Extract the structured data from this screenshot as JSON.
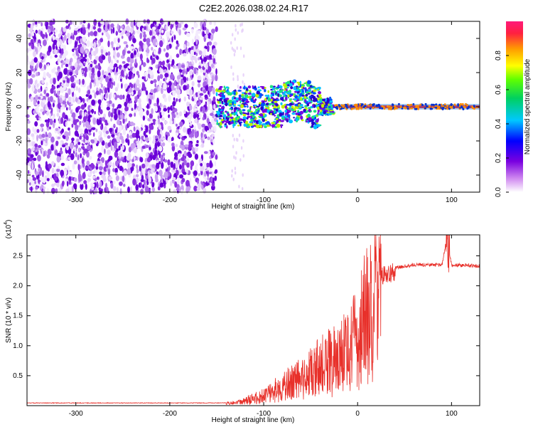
{
  "title": "C2E2.2026.038.02.24.R17",
  "chart_data": [
    {
      "type": "heatmap",
      "title": "C2E2.2026.038.02.24.R17",
      "xlabel": "Height of straight line (km)",
      "ylabel": "Frequency (Hz)",
      "xlim": [
        -352,
        130
      ],
      "ylim": [
        -50,
        50
      ],
      "xticks": [
        -300,
        -200,
        -100,
        0,
        100
      ],
      "yticks": [
        -40,
        -20,
        0,
        20,
        40
      ],
      "noise_region_end_km": -150,
      "signal_line_hz": 0,
      "colorbar": {
        "label": "Normalized spectral amplitude",
        "range": [
          0,
          1
        ],
        "ticks": [
          "0.0",
          "0.2",
          "0.4",
          "0.6",
          "0.8"
        ]
      }
    },
    {
      "type": "line",
      "xlabel": "Height of straight line (km)",
      "ylabel": "SNR (10 * v/v)",
      "y_multiplier": "(x10",
      "y_multiplier_exp": "4",
      "y_multiplier_close": ")",
      "xlim": [
        -352,
        130
      ],
      "ylim": [
        0,
        2.85
      ],
      "xticks": [
        -300,
        -200,
        -100,
        0,
        100
      ],
      "yticks": [
        "0.5",
        "1.0",
        "1.5",
        "2.0",
        "2.5"
      ],
      "color": "#e8302a",
      "series_envelope": {
        "x": [
          -352,
          -150,
          -130,
          -120,
          -100,
          -80,
          -60,
          -40,
          -20,
          0,
          10,
          20,
          30,
          40,
          60,
          80,
          90,
          95,
          100,
          130
        ],
        "y": [
          0.04,
          0.04,
          0.05,
          0.1,
          0.2,
          0.4,
          0.55,
          0.8,
          1.0,
          1.35,
          1.9,
          2.15,
          2.25,
          2.3,
          2.35,
          2.35,
          2.35,
          2.8,
          2.35,
          2.33
        ]
      }
    }
  ]
}
